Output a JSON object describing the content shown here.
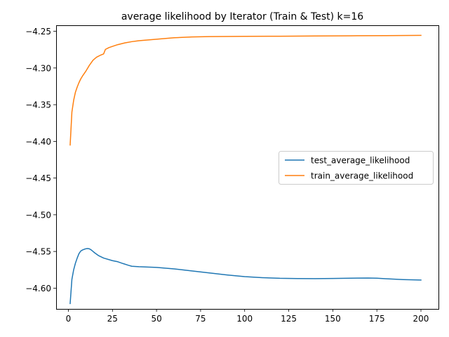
{
  "chart_data": {
    "type": "line",
    "title": "average likelihood by Iterator (Train & Test) k=16",
    "xlabel": "",
    "ylabel": "",
    "xlim": [
      -6.95,
      209.95
    ],
    "ylim": [
      -4.6283,
      -4.2418
    ],
    "x_ticks": [
      0,
      25,
      50,
      75,
      100,
      125,
      150,
      175,
      200
    ],
    "y_ticks": [
      -4.6,
      -4.55,
      -4.5,
      -4.45,
      -4.4,
      -4.35,
      -4.3,
      -4.25
    ],
    "y_tick_labels": [
      "−4.60",
      "−4.55",
      "−4.50",
      "−4.45",
      "−4.40",
      "−4.35",
      "−4.30",
      "−4.25"
    ],
    "grid": false,
    "legend_position": "center-right",
    "series": [
      {
        "name": "test_average_likelihood",
        "color": "#1f77b4",
        "x": [
          1,
          2,
          3,
          4,
          5,
          6,
          7,
          8,
          9,
          10,
          11,
          12,
          13,
          14,
          15,
          17,
          20,
          25,
          28,
          31,
          34,
          36,
          40,
          50,
          60,
          70,
          80,
          90,
          100,
          110,
          120,
          130,
          140,
          150,
          160,
          170,
          175,
          180,
          190,
          200
        ],
        "y": [
          -4.621,
          -4.588,
          -4.575,
          -4.566,
          -4.559,
          -4.553,
          -4.5495,
          -4.548,
          -4.547,
          -4.5463,
          -4.546,
          -4.5465,
          -4.548,
          -4.55,
          -4.552,
          -4.5555,
          -4.559,
          -4.5625,
          -4.564,
          -4.5665,
          -4.5688,
          -4.5702,
          -4.5708,
          -4.5717,
          -4.5738,
          -4.5765,
          -4.5793,
          -4.582,
          -4.5843,
          -4.5857,
          -4.5866,
          -4.5869,
          -4.587,
          -4.5868,
          -4.5864,
          -4.5862,
          -4.5864,
          -4.5872,
          -4.5883,
          -4.5889
        ]
      },
      {
        "name": "train_average_likelihood",
        "color": "#ff7f0e",
        "x": [
          1,
          2,
          3,
          4,
          5,
          6,
          7,
          8,
          10,
          12,
          14,
          16,
          18,
          20,
          21,
          23,
          25,
          28,
          32,
          36,
          40,
          50,
          60,
          70,
          80,
          100,
          120,
          140,
          160,
          180,
          200
        ],
        "y": [
          -4.405,
          -4.36,
          -4.344,
          -4.333,
          -4.326,
          -4.32,
          -4.315,
          -4.311,
          -4.304,
          -4.296,
          -4.2893,
          -4.2853,
          -4.2828,
          -4.2808,
          -4.2747,
          -4.2722,
          -4.2706,
          -4.2682,
          -4.2658,
          -4.2641,
          -4.2628,
          -4.2608,
          -4.2588,
          -4.2577,
          -4.2572,
          -4.2569,
          -4.2567,
          -4.2564,
          -4.2561,
          -4.2559,
          -4.2556
        ]
      }
    ]
  }
}
